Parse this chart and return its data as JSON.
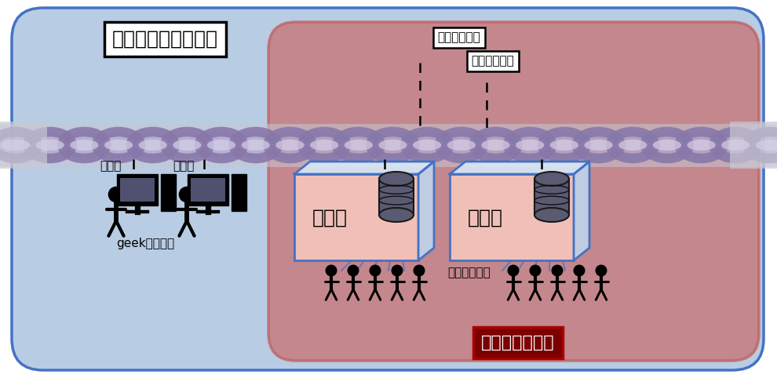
{
  "outer_bg": "#b8cce4",
  "outer_edge": "#4472c4",
  "inner_bg": "#c87070",
  "inner_edge": "#c06060",
  "chain_band_color": "#c8c8d4",
  "chain_purple_edge": "#8878aa",
  "chain_purple_fill": "#b0a8c8",
  "trustless_label": "トラストレスの世界",
  "trust_label": "トラストの世界",
  "exchange_label": "取引所",
  "geek_label": "geekな利用者",
  "amateur_label": "素人の利用者",
  "node_label1": "ノード",
  "node_label2": "ノード",
  "miner_label1": "専用採掘業者",
  "miner_label2": "専用採掘業者",
  "blue_line": "#4472c4",
  "trust_box_face": "#7B0000",
  "trust_box_edge": "#aa0000"
}
